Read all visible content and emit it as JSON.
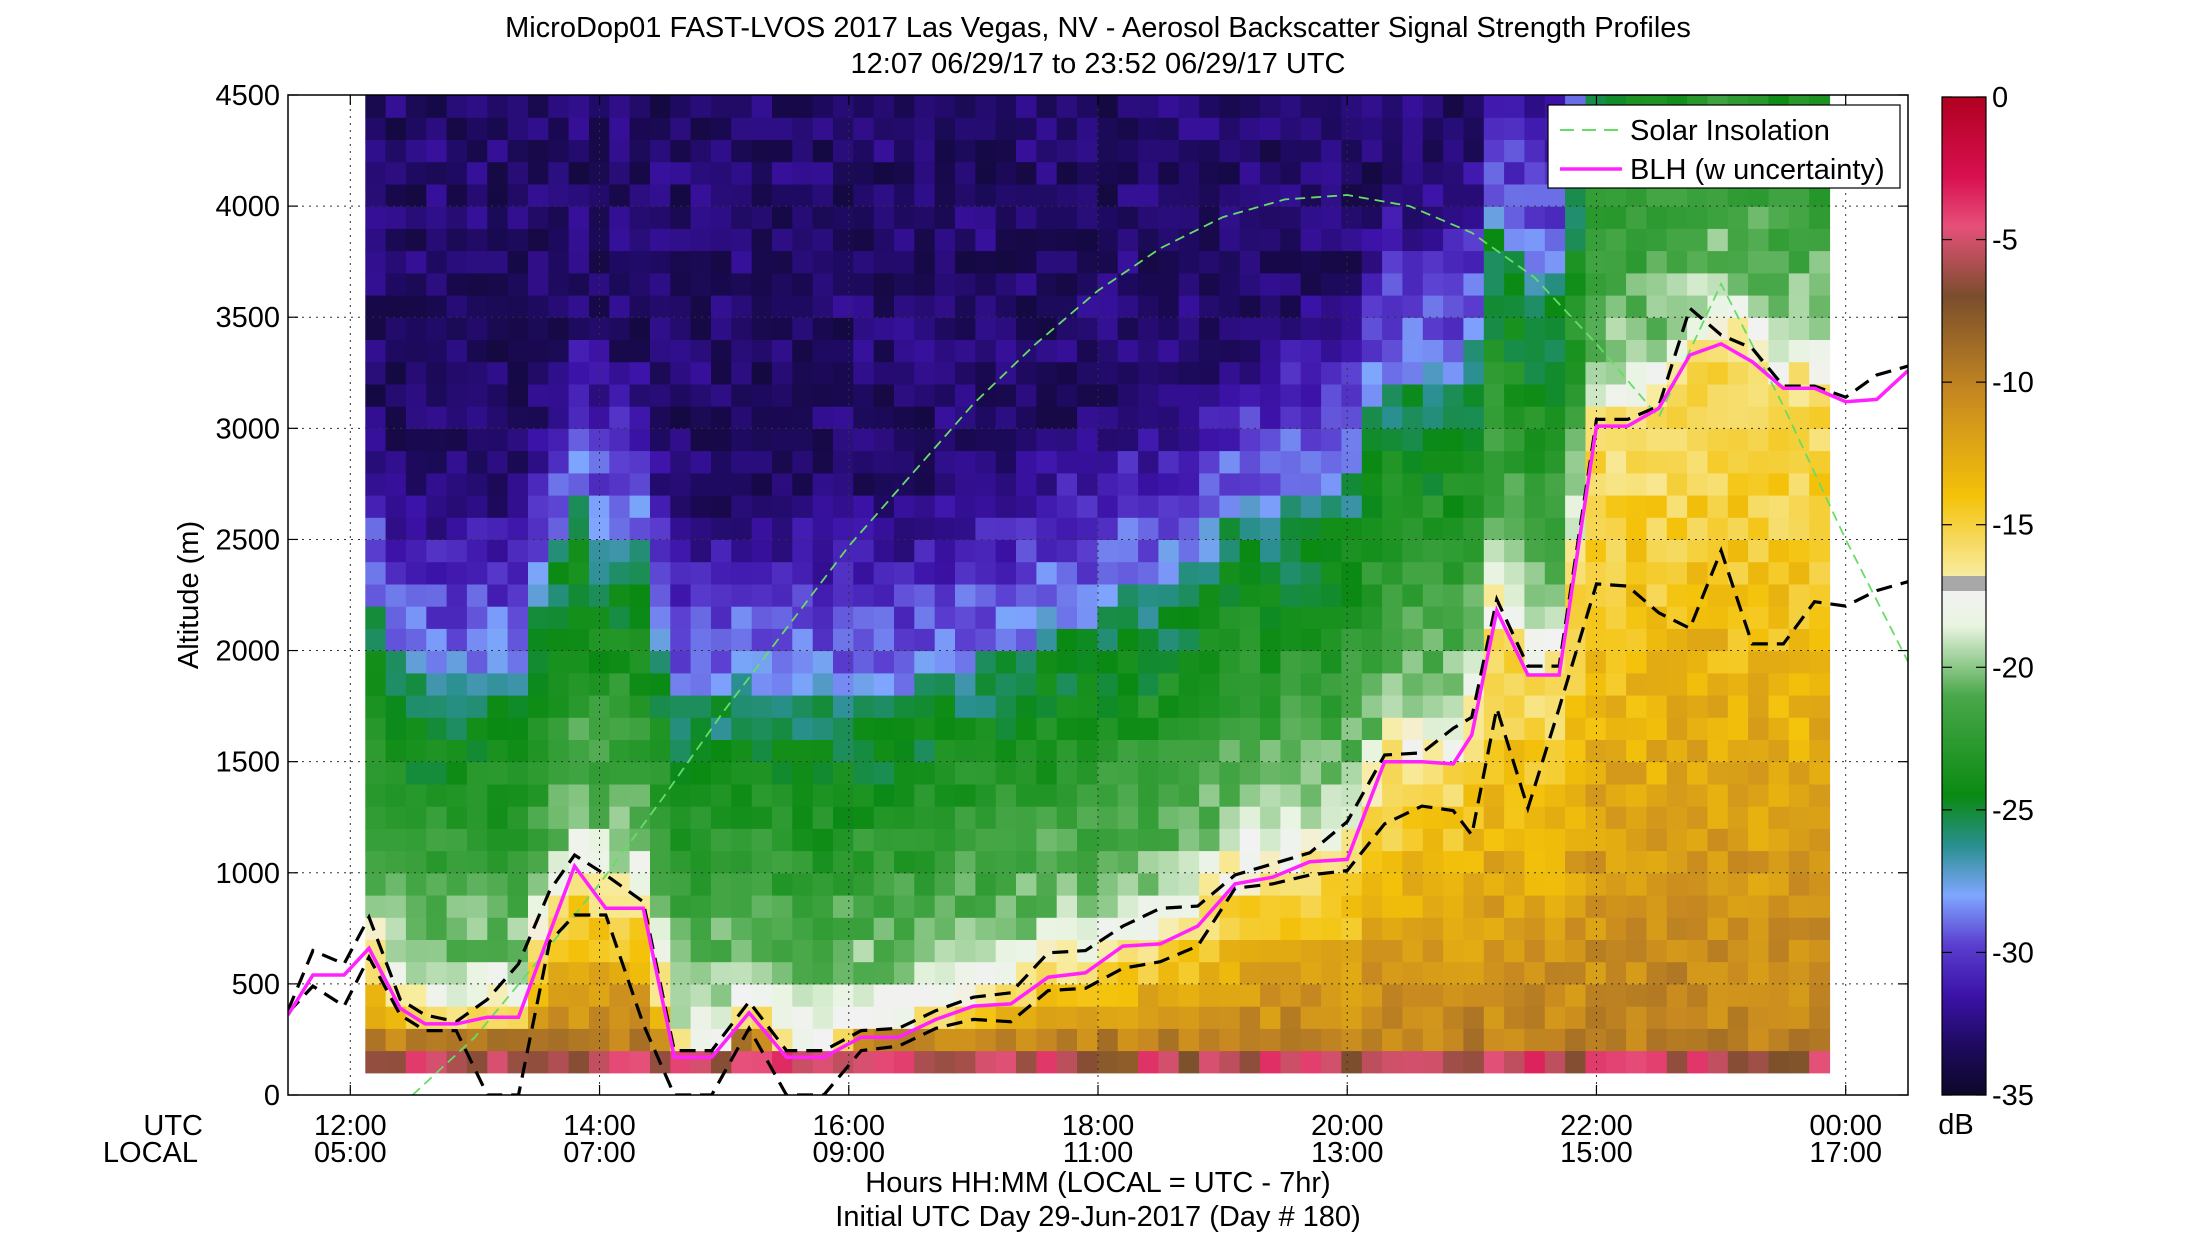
{
  "chart_data": {
    "type": "heatmap",
    "title": "MicroDop01 FAST-LVOS 2017 Las Vegas, NV - Aerosol Backscatter Signal Strength Profiles",
    "subtitle": "12:07 06/29/17 to 23:52 06/29/17  UTC",
    "ylabel": "Altitude (m)",
    "xlabel": "Hours HH:MM  (LOCAL = UTC - 7hr)",
    "xlabel2": "Initial UTC Day 29-Jun-2017 (Day # 180)",
    "row_labels": {
      "utc": "UTC",
      "local": "LOCAL"
    },
    "x_range_hours": [
      11.5,
      24.5
    ],
    "ylim": [
      0,
      4500
    ],
    "y_ticks": [
      0,
      500,
      1000,
      1500,
      2000,
      2500,
      3000,
      3500,
      4000,
      4500
    ],
    "x_ticks": [
      {
        "value": 12,
        "utc": "12:00",
        "local": "05:00"
      },
      {
        "value": 14,
        "utc": "14:00",
        "local": "07:00"
      },
      {
        "value": 16,
        "utc": "16:00",
        "local": "09:00"
      },
      {
        "value": 18,
        "utc": "18:00",
        "local": "11:00"
      },
      {
        "value": 20,
        "utc": "20:00",
        "local": "13:00"
      },
      {
        "value": 22,
        "utc": "22:00",
        "local": "15:00"
      },
      {
        "value": 24,
        "utc": "00:00",
        "local": "17:00"
      }
    ],
    "grid": true,
    "legend_position": "top-right",
    "legend": [
      {
        "label": "Solar Insolation",
        "color": "#66dd66",
        "style": "dashed"
      },
      {
        "label": "BLH (w uncertainty)",
        "color": "#ff22ff",
        "style": "solid"
      }
    ],
    "colorbar": {
      "unit": "dB",
      "range": [
        -35,
        0
      ],
      "ticks": [
        0,
        -5,
        -10,
        -15,
        -20,
        -25,
        -30,
        -35
      ]
    },
    "data_hours": [
      12.12,
      23.87
    ],
    "blh": {
      "x": [
        11.5,
        11.7,
        11.95,
        12.15,
        12.4,
        12.6,
        12.85,
        13.1,
        13.35,
        13.6,
        13.8,
        14.05,
        14.35,
        14.6,
        14.9,
        15.2,
        15.5,
        15.8,
        16.1,
        16.4,
        16.7,
        17.0,
        17.3,
        17.6,
        17.9,
        18.2,
        18.5,
        18.8,
        19.1,
        19.4,
        19.7,
        20.0,
        20.3,
        20.6,
        20.85,
        21.0,
        21.2,
        21.45,
        21.7,
        22.0,
        22.25,
        22.5,
        22.75,
        23.0,
        23.25,
        23.5,
        23.75,
        24.0,
        24.25,
        24.5
      ],
      "y": [
        360,
        540,
        540,
        660,
        390,
        320,
        320,
        350,
        350,
        730,
        1030,
        840,
        840,
        170,
        170,
        370,
        170,
        170,
        260,
        260,
        340,
        400,
        410,
        530,
        550,
        670,
        680,
        760,
        950,
        980,
        1050,
        1060,
        1500,
        1500,
        1490,
        1620,
        2180,
        1890,
        1890,
        3010,
        3010,
        3090,
        3330,
        3380,
        3300,
        3180,
        3180,
        3120,
        3130,
        3260
      ]
    },
    "blh_upper": {
      "x": [
        11.5,
        11.7,
        11.95,
        12.15,
        12.4,
        12.6,
        12.85,
        13.1,
        13.35,
        13.6,
        13.8,
        14.05,
        14.35,
        14.6,
        14.9,
        15.2,
        15.5,
        15.8,
        16.1,
        16.4,
        16.7,
        17.0,
        17.3,
        17.6,
        17.9,
        18.2,
        18.5,
        18.8,
        19.1,
        19.4,
        19.7,
        20.0,
        20.3,
        20.6,
        20.85,
        21.0,
        21.2,
        21.45,
        21.7,
        22.0,
        22.25,
        22.5,
        22.75,
        23.0,
        23.25,
        23.5,
        23.75,
        24.0,
        24.25,
        24.5
      ],
      "y": [
        380,
        650,
        590,
        800,
        430,
        360,
        330,
        430,
        590,
        920,
        1080,
        990,
        870,
        200,
        200,
        420,
        200,
        200,
        290,
        300,
        380,
        440,
        460,
        640,
        650,
        760,
        840,
        850,
        990,
        1040,
        1090,
        1230,
        1530,
        1540,
        1650,
        1700,
        2230,
        1930,
        1930,
        3040,
        3040,
        3100,
        3540,
        3420,
        3360,
        3190,
        3190,
        3140,
        3240,
        3280
      ]
    },
    "blh_lower": {
      "x": [
        11.5,
        11.7,
        11.95,
        12.15,
        12.4,
        12.6,
        12.85,
        13.1,
        13.35,
        13.6,
        13.8,
        14.05,
        14.35,
        14.6,
        14.9,
        15.2,
        15.5,
        15.8,
        16.1,
        16.4,
        16.7,
        17.0,
        17.3,
        17.6,
        17.9,
        18.2,
        18.5,
        18.8,
        19.1,
        19.4,
        19.7,
        20.0,
        20.3,
        20.6,
        20.85,
        21.0,
        21.2,
        21.45,
        21.7,
        22.0,
        22.25,
        22.5,
        22.75,
        23.0,
        23.25,
        23.5,
        23.75,
        24.0,
        24.25,
        24.5
      ],
      "y": [
        370,
        490,
        400,
        620,
        360,
        290,
        290,
        0,
        0,
        690,
        810,
        810,
        320,
        0,
        0,
        300,
        0,
        0,
        200,
        220,
        300,
        340,
        330,
        470,
        480,
        570,
        600,
        670,
        930,
        950,
        990,
        1010,
        1220,
        1300,
        1280,
        1170,
        1740,
        1290,
        1740,
        2300,
        2290,
        2170,
        2100,
        2450,
        2030,
        2030,
        2220,
        2200,
        2270,
        2310
      ]
    },
    "solar_insolation": {
      "x": [
        12.5,
        13.0,
        13.5,
        14.0,
        14.5,
        15.0,
        15.5,
        16.0,
        16.5,
        17.0,
        17.5,
        18.0,
        18.5,
        19.0,
        19.5,
        20.0,
        20.5,
        21.0,
        21.5,
        22.0,
        22.5,
        23.0,
        23.5,
        24.0,
        24.5
      ],
      "y": [
        0,
        260,
        600,
        950,
        1330,
        1730,
        2100,
        2470,
        2790,
        3110,
        3380,
        3620,
        3810,
        3950,
        4030,
        4050,
        4000,
        3880,
        3680,
        3380,
        3050,
        3650,
        3100,
        2500,
        1950
      ]
    }
  }
}
